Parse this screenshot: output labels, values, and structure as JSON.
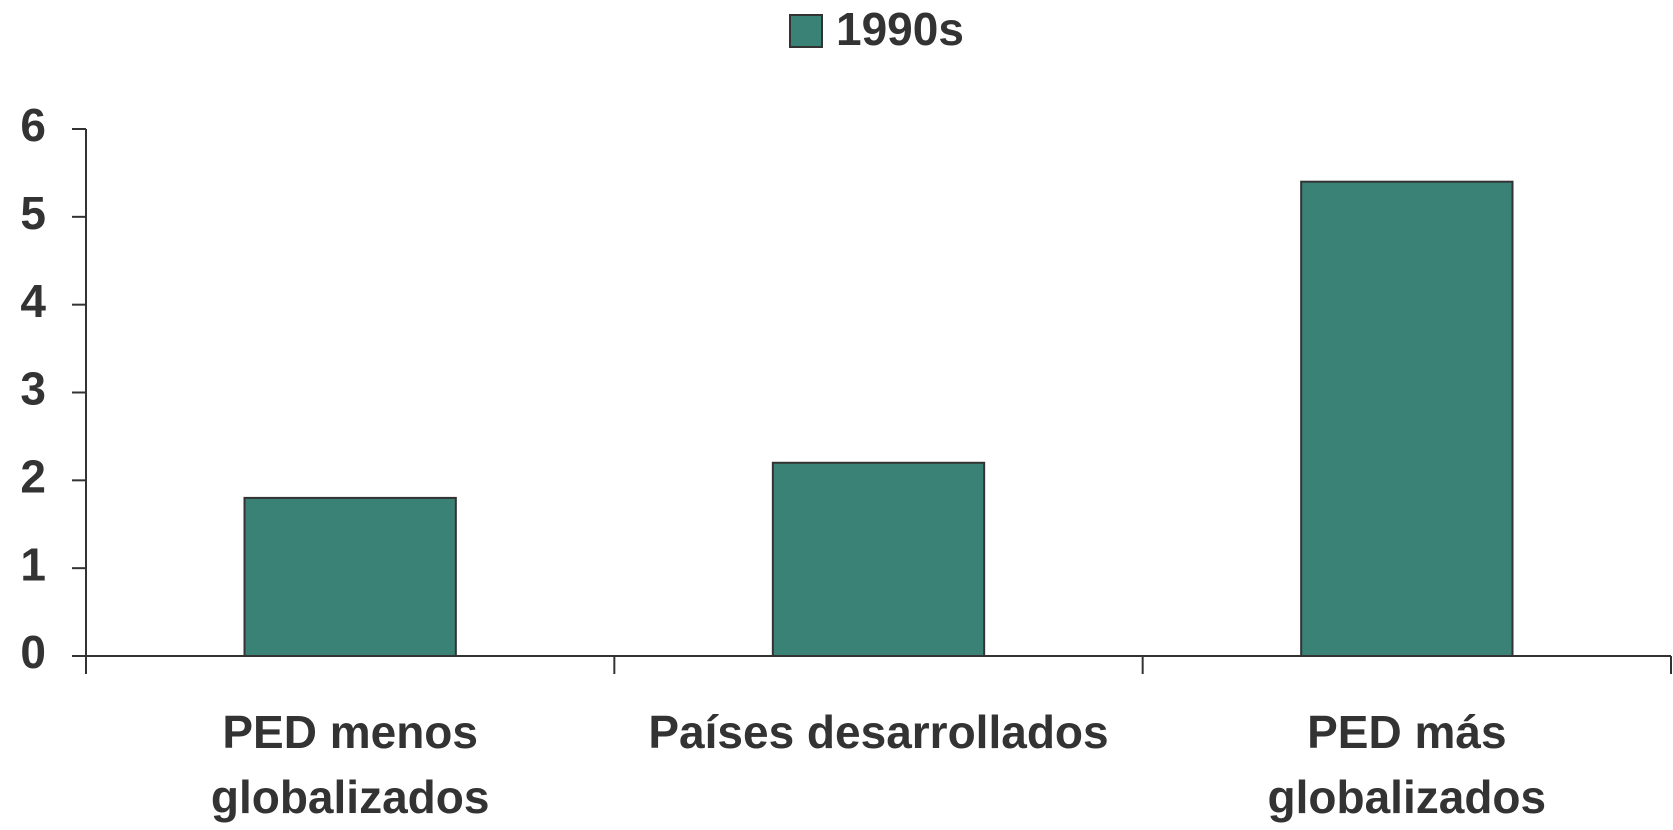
{
  "chart_data": {
    "type": "bar",
    "categories": [
      "PED menos\nglobalizados",
      "Países desarrollados",
      "PED más\nglobalizados"
    ],
    "series": [
      {
        "name": "1990s",
        "color": "#3a8276",
        "values": [
          1.8,
          2.2,
          5.4
        ]
      }
    ],
    "ylim": [
      0,
      6
    ],
    "yticks": [
      0,
      1,
      2,
      3,
      4,
      5,
      6
    ],
    "grid": false,
    "legend": "top"
  }
}
